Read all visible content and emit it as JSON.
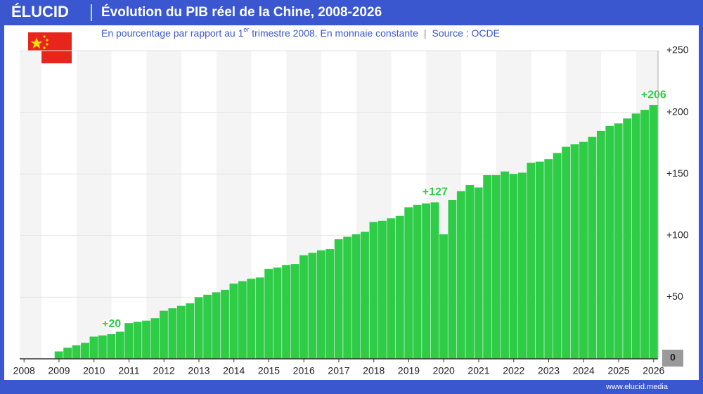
{
  "brand": "ÉLUCID",
  "footer": "www.elucid.media",
  "chart_data": {
    "type": "bar",
    "title": "Évolution du PIB réel de la Chine, 2008-2026",
    "subtitle": [
      "En pourcentage par rapport au 1",
      "er",
      " trimestre 2008. En monnaie constante"
    ],
    "source": "Source : OCDE",
    "color": "#2ecc47",
    "grid": true,
    "x": [
      2008,
      2008.25,
      2008.5,
      2008.75,
      2009,
      2009.25,
      2009.5,
      2009.75,
      2010,
      2010.25,
      2010.5,
      2010.75,
      2011,
      2011.25,
      2011.5,
      2011.75,
      2012,
      2012.25,
      2012.5,
      2012.75,
      2013,
      2013.25,
      2013.5,
      2013.75,
      2014,
      2014.25,
      2014.5,
      2014.75,
      2015,
      2015.25,
      2015.5,
      2015.75,
      2016,
      2016.25,
      2016.5,
      2016.75,
      2017,
      2017.25,
      2017.5,
      2017.75,
      2018,
      2018.25,
      2018.5,
      2018.75,
      2019,
      2019.25,
      2019.5,
      2019.75,
      2020,
      2020.25,
      2020.5,
      2020.75,
      2021,
      2021.25,
      2021.5,
      2021.75,
      2022,
      2022.25,
      2022.5,
      2022.75,
      2023,
      2023.25,
      2023.5,
      2023.75,
      2024,
      2024.25,
      2024.5,
      2024.75,
      2025,
      2025.25,
      2025.5,
      2025.75,
      2026
    ],
    "values": [
      0,
      0,
      0,
      0,
      6,
      9,
      11,
      13,
      18,
      19,
      20,
      22,
      29,
      30,
      31,
      33,
      39,
      41,
      43,
      45,
      50,
      52,
      54,
      56,
      61,
      63,
      65,
      66,
      73,
      74,
      76,
      77,
      84,
      86,
      88,
      89,
      97,
      99,
      101,
      103,
      111,
      112,
      114,
      116,
      123,
      125,
      126,
      127,
      101,
      129,
      136,
      141,
      139,
      149,
      149,
      152,
      150,
      151,
      159,
      160,
      162,
      167,
      172,
      174,
      176,
      180,
      185,
      189,
      191,
      195,
      199,
      202,
      206
    ],
    "value_labels": [
      null,
      null,
      null,
      null,
      null,
      null,
      null,
      null,
      null,
      null,
      "+20",
      null,
      null,
      null,
      null,
      null,
      null,
      null,
      null,
      null,
      null,
      null,
      null,
      null,
      null,
      null,
      null,
      null,
      null,
      null,
      null,
      null,
      null,
      null,
      null,
      null,
      null,
      null,
      null,
      null,
      null,
      null,
      null,
      null,
      null,
      null,
      null,
      "+127",
      null,
      null,
      null,
      null,
      null,
      null,
      null,
      null,
      null,
      null,
      null,
      null,
      null,
      null,
      null,
      null,
      null,
      null,
      null,
      null,
      null,
      null,
      null,
      null,
      "+206"
    ],
    "xlim": [
      2007.875,
      2026.125
    ],
    "xticks": [
      2008,
      2009,
      2010,
      2011,
      2012,
      2013,
      2014,
      2015,
      2016,
      2017,
      2018,
      2019,
      2020,
      2021,
      2022,
      2023,
      2024,
      2025,
      2026
    ],
    "ylim": [
      0,
      250
    ],
    "yticks": [
      0,
      {
        "value": 50,
        "label": "+50"
      },
      {
        "value": 100,
        "label": "+100"
      },
      {
        "value": 150,
        "label": "+150"
      },
      {
        "value": 200,
        "label": "+200"
      },
      {
        "value": 250,
        "label": "+250"
      }
    ]
  }
}
